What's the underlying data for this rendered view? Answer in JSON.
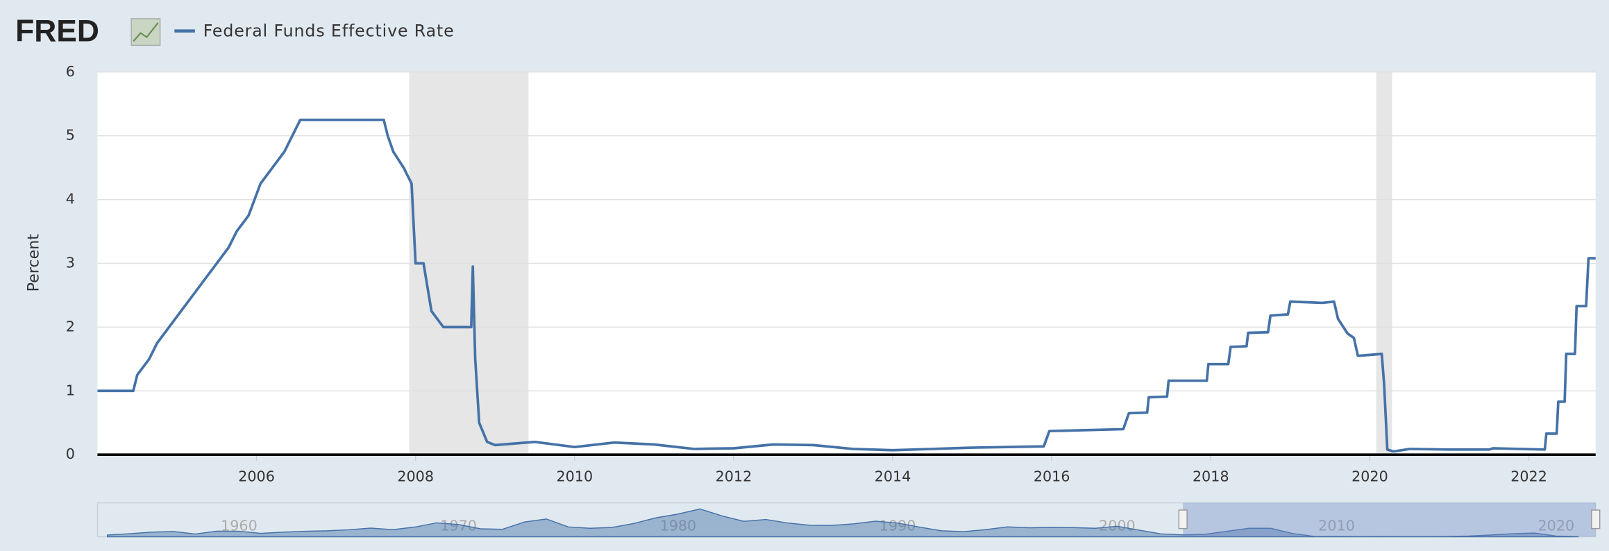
{
  "logo": "FRED",
  "chart_data": [
    {
      "type": "line",
      "ylabel": "Percent",
      "xlim": [
        2004,
        2022.84
      ],
      "xticks": [
        2006,
        2008,
        2010,
        2012,
        2014,
        2016,
        2018,
        2020,
        2022
      ],
      "ylim": [
        0,
        6
      ],
      "yticks": [
        0,
        1,
        2,
        3,
        4,
        5,
        6
      ],
      "grid": true,
      "recessions": [
        {
          "start": 2007.92,
          "end": 2009.42
        },
        {
          "start": 2020.08,
          "end": 2020.28
        }
      ],
      "recession_color": "#e6e6e6",
      "x": [
        2004.0,
        2004.45,
        2004.5,
        2004.65,
        2004.75,
        2004.9,
        2005.05,
        2005.2,
        2005.35,
        2005.5,
        2005.65,
        2005.75,
        2005.9,
        2006.05,
        2006.2,
        2006.35,
        2006.45,
        2006.55,
        2007.6,
        2007.65,
        2007.72,
        2007.85,
        2007.95,
        2008.0,
        2008.1,
        2008.2,
        2008.35,
        2008.7,
        2008.72,
        2008.75,
        2008.8,
        2008.9,
        2009.0,
        2009.5,
        2010.0,
        2010.5,
        2011.0,
        2011.5,
        2012.0,
        2012.5,
        2013.0,
        2013.5,
        2014.0,
        2014.5,
        2015.0,
        2015.9,
        2015.97,
        2016.9,
        2016.97,
        2017.2,
        2017.22,
        2017.45,
        2017.47,
        2017.95,
        2017.97,
        2018.22,
        2018.25,
        2018.45,
        2018.47,
        2018.72,
        2018.75,
        2018.97,
        2019.0,
        2019.4,
        2019.55,
        2019.6,
        2019.72,
        2019.8,
        2019.85,
        2020.15,
        2020.18,
        2020.22,
        2020.3,
        2020.5,
        2021.0,
        2021.5,
        2021.55,
        2022.2,
        2022.22,
        2022.35,
        2022.37,
        2022.45,
        2022.47,
        2022.58,
        2022.6,
        2022.72,
        2022.75,
        2022.84
      ],
      "series": [
        {
          "name": "Federal Funds Effective Rate",
          "color": "#4572a7",
          "values": [
            1.0,
            1.0,
            1.25,
            1.5,
            1.75,
            2.0,
            2.25,
            2.5,
            2.75,
            3.0,
            3.25,
            3.5,
            3.75,
            4.25,
            4.5,
            4.75,
            5.0,
            5.25,
            5.25,
            5.0,
            4.75,
            4.5,
            4.25,
            3.0,
            3.0,
            2.25,
            2.0,
            2.0,
            2.95,
            1.5,
            0.5,
            0.2,
            0.15,
            0.2,
            0.12,
            0.19,
            0.16,
            0.09,
            0.1,
            0.16,
            0.15,
            0.09,
            0.07,
            0.09,
            0.11,
            0.13,
            0.37,
            0.4,
            0.65,
            0.66,
            0.9,
            0.91,
            1.16,
            1.16,
            1.42,
            1.42,
            1.69,
            1.7,
            1.91,
            1.92,
            2.18,
            2.2,
            2.4,
            2.38,
            2.4,
            2.13,
            1.9,
            1.83,
            1.55,
            1.58,
            1.1,
            0.08,
            0.05,
            0.09,
            0.08,
            0.08,
            0.1,
            0.08,
            0.33,
            0.33,
            0.83,
            0.83,
            1.58,
            1.58,
            2.33,
            2.33,
            3.08,
            3.08
          ]
        }
      ]
    },
    {
      "type": "area",
      "xlim": [
        1953.55,
        2021.8
      ],
      "xticks": [
        1960,
        1970,
        1980,
        1990,
        2000,
        2010,
        2020
      ],
      "ylim": [
        0,
        20
      ],
      "selection": [
        2003,
        2021.8
      ],
      "x": [
        1954,
        1955,
        1956,
        1957,
        1958,
        1959,
        1960,
        1961,
        1962,
        1963,
        1964,
        1965,
        1966,
        1967,
        1968,
        1969,
        1970,
        1971,
        1972,
        1973,
        1974,
        1975,
        1976,
        1977,
        1978,
        1979,
        1980,
        1981,
        1982,
        1983,
        1984,
        1985,
        1986,
        1987,
        1988,
        1989,
        1990,
        1991,
        1992,
        1993,
        1994,
        1995,
        1996,
        1997,
        1998,
        1999,
        2000,
        2001,
        2002,
        2003,
        2004,
        2005,
        2006,
        2007,
        2008,
        2009,
        2010,
        2011,
        2012,
        2013,
        2014,
        2015,
        2016,
        2017,
        2018,
        2019,
        2020,
        2021
      ],
      "series": [
        {
          "name": "Federal Funds Effective Rate",
          "color": "#4572a7",
          "values": [
            1.0,
            1.8,
            2.7,
            3.1,
            1.6,
            3.3,
            3.2,
            2.0,
            2.7,
            3.2,
            3.5,
            4.1,
            5.1,
            4.2,
            5.7,
            8.2,
            7.2,
            4.7,
            4.4,
            8.7,
            10.5,
            5.8,
            5.0,
            5.5,
            7.9,
            11.2,
            13.4,
            16.4,
            12.3,
            9.1,
            10.2,
            8.1,
            6.8,
            6.7,
            7.6,
            9.2,
            8.1,
            5.7,
            3.5,
            3.0,
            4.2,
            5.8,
            5.3,
            5.5,
            5.4,
            5.0,
            6.2,
            3.9,
            1.7,
            1.1,
            1.4,
            3.2,
            5.0,
            5.0,
            1.9,
            0.16,
            0.18,
            0.1,
            0.14,
            0.11,
            0.09,
            0.13,
            0.4,
            1.0,
            1.8,
            2.2,
            0.4,
            0.08
          ]
        }
      ]
    }
  ]
}
